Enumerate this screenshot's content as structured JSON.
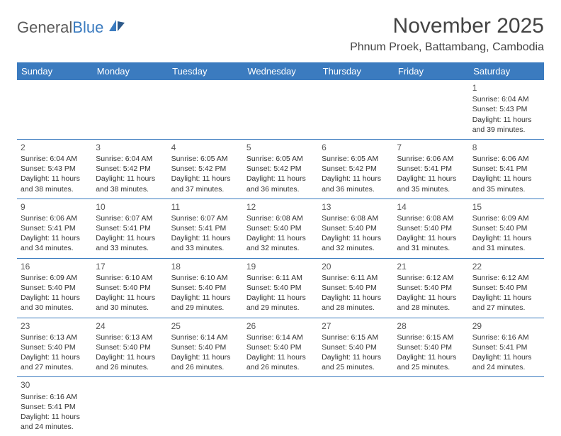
{
  "logo": {
    "textA": "General",
    "textB": "Blue"
  },
  "title": "November 2025",
  "location": "Phnum Proek, Battambang, Cambodia",
  "colors": {
    "header_bg": "#3b7bbf",
    "header_text": "#ffffff",
    "cell_border": "#3b7bbf",
    "text": "#333333",
    "logo_gray": "#5a5a5a",
    "logo_blue": "#3b7bbf",
    "background": "#ffffff"
  },
  "day_headers": [
    "Sunday",
    "Monday",
    "Tuesday",
    "Wednesday",
    "Thursday",
    "Friday",
    "Saturday"
  ],
  "weeks": [
    [
      null,
      null,
      null,
      null,
      null,
      null,
      {
        "n": "1",
        "sunrise": "6:04 AM",
        "sunset": "5:43 PM",
        "daylight": "11 hours and 39 minutes."
      }
    ],
    [
      {
        "n": "2",
        "sunrise": "6:04 AM",
        "sunset": "5:43 PM",
        "daylight": "11 hours and 38 minutes."
      },
      {
        "n": "3",
        "sunrise": "6:04 AM",
        "sunset": "5:42 PM",
        "daylight": "11 hours and 38 minutes."
      },
      {
        "n": "4",
        "sunrise": "6:05 AM",
        "sunset": "5:42 PM",
        "daylight": "11 hours and 37 minutes."
      },
      {
        "n": "5",
        "sunrise": "6:05 AM",
        "sunset": "5:42 PM",
        "daylight": "11 hours and 36 minutes."
      },
      {
        "n": "6",
        "sunrise": "6:05 AM",
        "sunset": "5:42 PM",
        "daylight": "11 hours and 36 minutes."
      },
      {
        "n": "7",
        "sunrise": "6:06 AM",
        "sunset": "5:41 PM",
        "daylight": "11 hours and 35 minutes."
      },
      {
        "n": "8",
        "sunrise": "6:06 AM",
        "sunset": "5:41 PM",
        "daylight": "11 hours and 35 minutes."
      }
    ],
    [
      {
        "n": "9",
        "sunrise": "6:06 AM",
        "sunset": "5:41 PM",
        "daylight": "11 hours and 34 minutes."
      },
      {
        "n": "10",
        "sunrise": "6:07 AM",
        "sunset": "5:41 PM",
        "daylight": "11 hours and 33 minutes."
      },
      {
        "n": "11",
        "sunrise": "6:07 AM",
        "sunset": "5:41 PM",
        "daylight": "11 hours and 33 minutes."
      },
      {
        "n": "12",
        "sunrise": "6:08 AM",
        "sunset": "5:40 PM",
        "daylight": "11 hours and 32 minutes."
      },
      {
        "n": "13",
        "sunrise": "6:08 AM",
        "sunset": "5:40 PM",
        "daylight": "11 hours and 32 minutes."
      },
      {
        "n": "14",
        "sunrise": "6:08 AM",
        "sunset": "5:40 PM",
        "daylight": "11 hours and 31 minutes."
      },
      {
        "n": "15",
        "sunrise": "6:09 AM",
        "sunset": "5:40 PM",
        "daylight": "11 hours and 31 minutes."
      }
    ],
    [
      {
        "n": "16",
        "sunrise": "6:09 AM",
        "sunset": "5:40 PM",
        "daylight": "11 hours and 30 minutes."
      },
      {
        "n": "17",
        "sunrise": "6:10 AM",
        "sunset": "5:40 PM",
        "daylight": "11 hours and 30 minutes."
      },
      {
        "n": "18",
        "sunrise": "6:10 AM",
        "sunset": "5:40 PM",
        "daylight": "11 hours and 29 minutes."
      },
      {
        "n": "19",
        "sunrise": "6:11 AM",
        "sunset": "5:40 PM",
        "daylight": "11 hours and 29 minutes."
      },
      {
        "n": "20",
        "sunrise": "6:11 AM",
        "sunset": "5:40 PM",
        "daylight": "11 hours and 28 minutes."
      },
      {
        "n": "21",
        "sunrise": "6:12 AM",
        "sunset": "5:40 PM",
        "daylight": "11 hours and 28 minutes."
      },
      {
        "n": "22",
        "sunrise": "6:12 AM",
        "sunset": "5:40 PM",
        "daylight": "11 hours and 27 minutes."
      }
    ],
    [
      {
        "n": "23",
        "sunrise": "6:13 AM",
        "sunset": "5:40 PM",
        "daylight": "11 hours and 27 minutes."
      },
      {
        "n": "24",
        "sunrise": "6:13 AM",
        "sunset": "5:40 PM",
        "daylight": "11 hours and 26 minutes."
      },
      {
        "n": "25",
        "sunrise": "6:14 AM",
        "sunset": "5:40 PM",
        "daylight": "11 hours and 26 minutes."
      },
      {
        "n": "26",
        "sunrise": "6:14 AM",
        "sunset": "5:40 PM",
        "daylight": "11 hours and 26 minutes."
      },
      {
        "n": "27",
        "sunrise": "6:15 AM",
        "sunset": "5:40 PM",
        "daylight": "11 hours and 25 minutes."
      },
      {
        "n": "28",
        "sunrise": "6:15 AM",
        "sunset": "5:40 PM",
        "daylight": "11 hours and 25 minutes."
      },
      {
        "n": "29",
        "sunrise": "6:16 AM",
        "sunset": "5:41 PM",
        "daylight": "11 hours and 24 minutes."
      }
    ],
    [
      {
        "n": "30",
        "sunrise": "6:16 AM",
        "sunset": "5:41 PM",
        "daylight": "11 hours and 24 minutes."
      },
      null,
      null,
      null,
      null,
      null,
      null
    ]
  ],
  "labels": {
    "sunrise": "Sunrise:",
    "sunset": "Sunset:",
    "daylight": "Daylight:"
  }
}
